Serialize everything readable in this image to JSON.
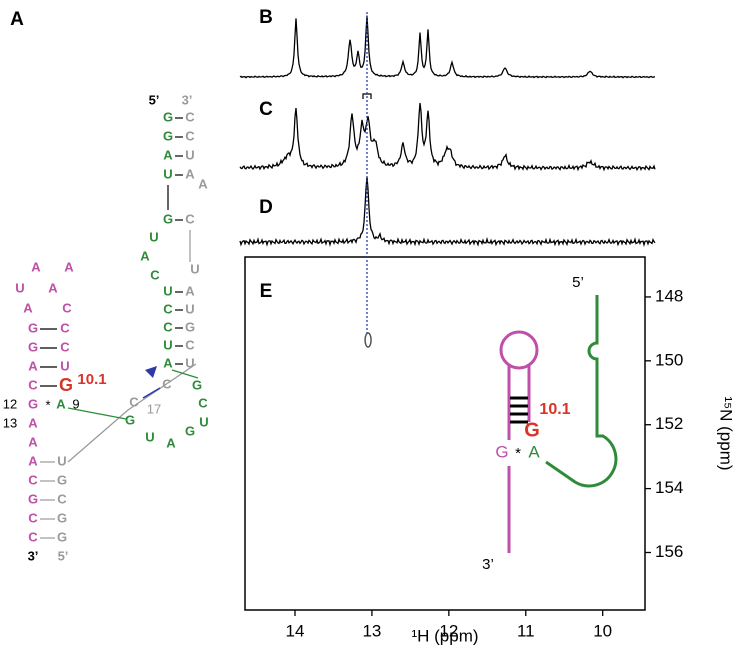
{
  "panels": {
    "a": "A",
    "b": "B",
    "c": "C",
    "d": "D",
    "e": "E"
  },
  "structure": {
    "magenta": [
      "A",
      "A",
      "U",
      "A",
      "A",
      "C",
      "G",
      "C",
      "G",
      "C",
      "A",
      "U",
      "C",
      "G",
      "A",
      "A",
      "A",
      "C",
      "G",
      "C",
      "C"
    ],
    "site_base": "G",
    "site": "10.1",
    "left_gray": [
      "U",
      "G",
      "C",
      "G",
      "G",
      "5’"
    ],
    "left_green": "A",
    "black": [
      "12",
      "13",
      "9",
      "*",
      "3’",
      "5’"
    ],
    "right_gray": [
      "3’",
      "C",
      "C",
      "U",
      "A",
      "A",
      "C",
      "U",
      "A",
      "U",
      "G",
      "C",
      "U",
      "C",
      "C"
    ],
    "right_gray_number": "17",
    "right_green": [
      "G",
      "G",
      "A",
      "U",
      "G",
      "U",
      "A",
      "C",
      "U",
      "C",
      "C",
      "U",
      "A",
      "G",
      "C",
      "U",
      "G",
      "U",
      "A",
      "G"
    ]
  },
  "panel_e": {
    "five_prime": "5’",
    "site": "10.1",
    "site_base": "G",
    "g": "G",
    "star": "*",
    "a": "A",
    "three_prime": "3’"
  },
  "chart_data": {
    "type": "scatter",
    "x_label": "¹H (ppm)",
    "y_label": "¹⁵N (ppm)",
    "x": [
      13.05
    ],
    "values": [
      149.35
    ],
    "color": "#555555",
    "xlim": [
      14.65,
      9.45
    ],
    "ylim": [
      157.8,
      146.75
    ],
    "xticks": [
      14,
      13,
      12,
      11,
      10
    ],
    "yticks": [
      148,
      150,
      152,
      154,
      156
    ]
  }
}
